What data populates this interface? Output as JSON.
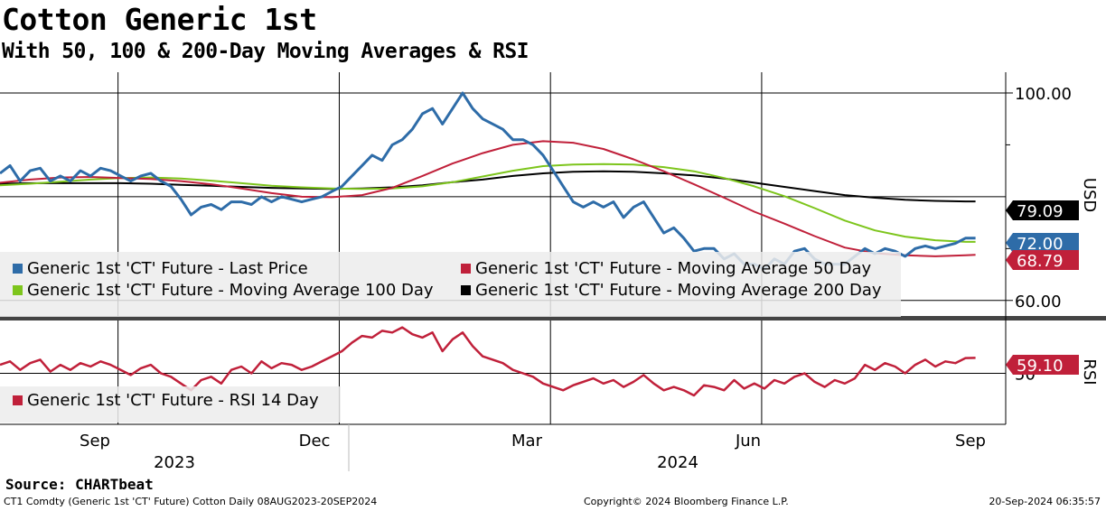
{
  "title": "Cotton Generic 1st",
  "subtitle": "With 50, 100 & 200-Day Moving Averages & RSI",
  "source": "Source: CHARTbeat",
  "footer": {
    "left": "CT1 Comdty (Generic 1st 'CT' Future) Cotton  Daily 08AUG2023-20SEP2024",
    "center": "Copyright© 2024 Bloomberg Finance L.P.",
    "right": "20-Sep-2024 06:35:57"
  },
  "colors": {
    "price": "#2e6ca8",
    "ma50": "#c0203a",
    "ma100": "#7dc51c",
    "ma200": "#000000",
    "rsi": "#c0203a",
    "grid": "#000000"
  },
  "chart_data": [
    {
      "type": "line",
      "title": "Cotton Generic 1st",
      "ylabel": "USD",
      "ylim": [
        57,
        104
      ],
      "yticks": [
        {
          "value": 100,
          "label": "100.00"
        },
        {
          "value": 60,
          "label": "60.00"
        }
      ],
      "xlim": [
        0,
        100
      ],
      "x_month_ticks": [
        {
          "x": 8.5,
          "label": "Sep"
        },
        {
          "x": 30.5,
          "label": "Dec"
        },
        {
          "x": 51.5,
          "label": "Mar"
        },
        {
          "x": 72.5,
          "label": "Jun"
        },
        {
          "x": 94.5,
          "label": "Sep"
        }
      ],
      "year_labels": [
        {
          "x": 17,
          "label": "2023"
        },
        {
          "x": 65,
          "label": "2024"
        }
      ],
      "last_value_tags": [
        {
          "series": "Generic 1st 'CT' Future - Moving Average 200 Day",
          "label": "79.09",
          "value": 79.09
        },
        {
          "series": "Generic 1st 'CT' Future - Last Price",
          "label": "72.00",
          "value": 72.0
        },
        {
          "series": "Generic 1st 'CT' Future - Moving Average 50 Day",
          "label": "68.79",
          "value": 68.79
        }
      ],
      "series": [
        {
          "name": "Generic 1st 'CT' Future - Last Price",
          "x": [
            0,
            1,
            2,
            3,
            4,
            5,
            6,
            7,
            8,
            9,
            10,
            11,
            12,
            13,
            14,
            15,
            16,
            17,
            18,
            19,
            20,
            21,
            22,
            23,
            24,
            25,
            26,
            27,
            28,
            29,
            30,
            31,
            32,
            33,
            34,
            35,
            36,
            37,
            38,
            39,
            40,
            41,
            42,
            43,
            44,
            45,
            46,
            47,
            48,
            49,
            50,
            51,
            52,
            53,
            54,
            55,
            56,
            57,
            58,
            59,
            60,
            61,
            62,
            63,
            64,
            65,
            66,
            67,
            68,
            69,
            70,
            71,
            72,
            73,
            74,
            75,
            76,
            77,
            78,
            79,
            80,
            81,
            82,
            83,
            84,
            85,
            86,
            87,
            88,
            89,
            90,
            91,
            92,
            93,
            94,
            95,
            96,
            97
          ],
          "values": [
            84.5,
            86,
            83,
            85,
            85.5,
            83,
            84,
            83,
            85,
            84,
            85.5,
            85,
            84,
            83,
            84,
            84.5,
            83,
            82,
            79.5,
            76.5,
            78,
            78.5,
            77.5,
            79,
            79,
            78.5,
            80,
            79,
            80,
            79.5,
            79,
            79.5,
            80,
            81,
            82,
            84,
            86,
            88,
            87,
            90,
            91,
            93,
            96,
            97,
            94,
            97,
            100,
            97,
            95,
            94,
            93,
            91,
            91,
            90,
            88,
            85,
            82,
            79,
            78,
            79,
            78,
            79,
            76,
            78,
            79,
            76,
            73,
            74,
            72,
            69.5,
            70,
            70,
            68,
            69,
            67,
            67,
            66,
            68,
            67,
            69.5,
            70,
            68,
            67,
            67,
            67,
            68.5,
            70,
            69,
            70,
            69.5,
            68.5,
            70,
            70.5,
            70,
            70.5,
            71,
            72,
            72
          ]
        },
        {
          "name": "Generic 1st 'CT' Future - Moving Average 50 Day",
          "x": [
            0,
            3,
            6,
            9,
            12,
            15,
            18,
            21,
            24,
            27,
            30,
            33,
            36,
            39,
            42,
            45,
            48,
            51,
            54,
            57,
            60,
            63,
            66,
            69,
            72,
            75,
            78,
            81,
            84,
            87,
            90,
            93,
            96,
            97
          ],
          "values": [
            82.7,
            83.3,
            83.7,
            83.8,
            83.6,
            83.4,
            83.0,
            82.4,
            81.6,
            80.7,
            80.0,
            79.9,
            80.3,
            81.7,
            84.0,
            86.4,
            88.4,
            90.0,
            90.7,
            90.4,
            89.2,
            87.2,
            84.9,
            82.4,
            79.8,
            77.1,
            74.8,
            72.4,
            70.2,
            69.1,
            68.7,
            68.5,
            68.7,
            68.79
          ]
        },
        {
          "name": "Generic 1st 'CT' Future - Moving Average 100 Day",
          "x": [
            0,
            3,
            6,
            9,
            12,
            15,
            18,
            21,
            24,
            27,
            30,
            33,
            36,
            39,
            42,
            45,
            48,
            51,
            54,
            57,
            60,
            63,
            66,
            69,
            72,
            75,
            78,
            81,
            84,
            87,
            90,
            93,
            96,
            97
          ],
          "values": [
            82.2,
            82.5,
            82.9,
            83.3,
            83.6,
            83.7,
            83.5,
            83.1,
            82.6,
            82.1,
            81.8,
            81.6,
            81.5,
            81.6,
            82.0,
            82.8,
            83.9,
            85.0,
            85.9,
            86.2,
            86.3,
            86.2,
            85.7,
            84.9,
            83.6,
            82.0,
            80.1,
            77.8,
            75.4,
            73.5,
            72.3,
            71.6,
            71.3,
            71.3
          ]
        },
        {
          "name": "Generic 1st 'CT' Future - Moving Average 200 Day",
          "x": [
            0,
            3,
            6,
            9,
            12,
            15,
            18,
            21,
            24,
            27,
            30,
            33,
            36,
            39,
            42,
            45,
            48,
            51,
            54,
            57,
            60,
            63,
            66,
            69,
            72,
            75,
            78,
            81,
            84,
            87,
            90,
            93,
            96,
            97
          ],
          "values": [
            82.5,
            82.6,
            82.6,
            82.6,
            82.6,
            82.5,
            82.3,
            82.1,
            81.9,
            81.7,
            81.6,
            81.5,
            81.6,
            81.8,
            82.2,
            82.8,
            83.3,
            84.0,
            84.5,
            84.8,
            84.9,
            84.8,
            84.5,
            84.1,
            83.5,
            82.7,
            81.9,
            81.1,
            80.3,
            79.8,
            79.4,
            79.2,
            79.09,
            79.09
          ]
        }
      ],
      "legend": [
        "Generic 1st 'CT' Future - Last Price",
        "Generic 1st 'CT' Future - Moving Average 50 Day",
        "Generic 1st 'CT' Future - Moving Average 100 Day",
        "Generic 1st 'CT' Future - Moving Average 200 Day"
      ]
    },
    {
      "type": "line",
      "title": "RSI",
      "ylabel": "RSI",
      "ylim": [
        20,
        80
      ],
      "yticks": [
        {
          "value": 50,
          "label": "50"
        }
      ],
      "last_value_tags": [
        {
          "series": "Generic 1st 'CT' Future - RSI 14 Day",
          "label": "59.10",
          "value": 59.1
        }
      ],
      "series": [
        {
          "name": "Generic 1st 'CT' Future - RSI 14 Day",
          "x": [
            0,
            1,
            2,
            3,
            4,
            5,
            6,
            7,
            8,
            9,
            10,
            11,
            12,
            13,
            14,
            15,
            16,
            17,
            18,
            19,
            20,
            21,
            22,
            23,
            24,
            25,
            26,
            27,
            28,
            29,
            30,
            31,
            32,
            33,
            34,
            35,
            36,
            37,
            38,
            39,
            40,
            41,
            42,
            43,
            44,
            45,
            46,
            47,
            48,
            49,
            50,
            51,
            52,
            53,
            54,
            55,
            56,
            57,
            58,
            59,
            60,
            61,
            62,
            63,
            64,
            65,
            66,
            67,
            68,
            69,
            70,
            71,
            72,
            73,
            74,
            75,
            76,
            77,
            78,
            79,
            80,
            81,
            82,
            83,
            84,
            85,
            86,
            87,
            88,
            89,
            90,
            91,
            92,
            93,
            94,
            95,
            96,
            97
          ],
          "values": [
            55,
            57,
            52,
            56,
            58,
            51,
            55,
            52,
            56,
            54,
            57,
            55,
            52,
            49,
            53,
            55,
            50,
            48,
            44,
            40,
            46,
            48,
            44,
            52,
            54,
            50,
            57,
            53,
            56,
            55,
            52,
            54,
            57,
            60,
            63,
            68,
            72,
            71,
            75,
            74,
            77,
            73,
            71,
            74,
            63,
            70,
            74,
            66,
            60,
            58,
            56,
            52,
            50,
            48,
            44,
            42,
            40,
            43,
            45,
            47,
            44,
            46,
            42,
            45,
            49,
            44,
            40,
            42,
            40,
            37,
            43,
            42,
            40,
            46,
            41,
            44,
            41,
            46,
            44,
            48,
            50,
            45,
            42,
            46,
            44,
            47,
            55,
            52,
            56,
            54,
            50,
            55,
            58,
            54,
            57,
            56,
            59,
            59.1
          ]
        }
      ],
      "legend": [
        "Generic 1st 'CT' Future - RSI 14 Day"
      ]
    }
  ]
}
